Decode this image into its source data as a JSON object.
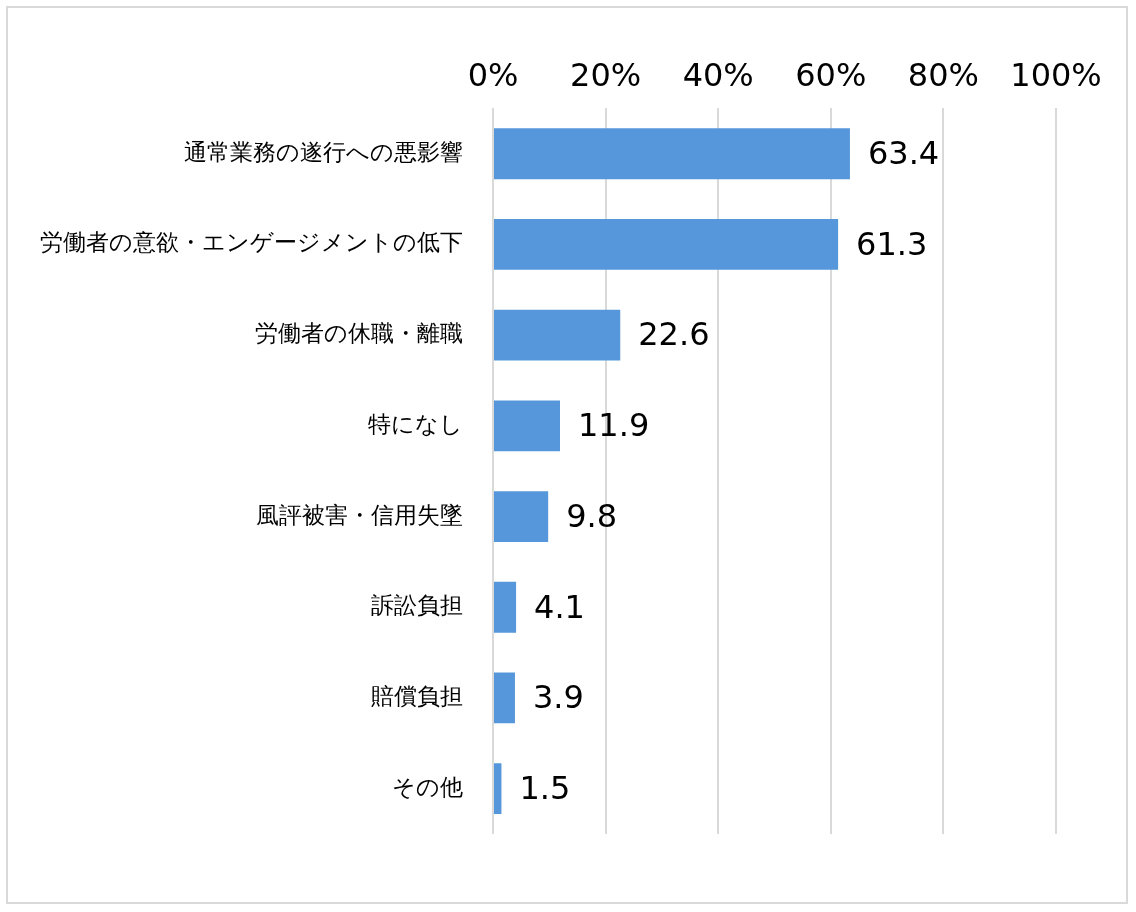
{
  "chart_data": {
    "type": "bar",
    "orientation": "horizontal",
    "categories": [
      "通常業務の遂行への悪影響",
      "労働者の意欲・エンゲージメントの低下",
      "労働者の休職・離職",
      "特になし",
      "風評被害・信用失墜",
      "訴訟負担",
      "賠償負担",
      "その他"
    ],
    "values": [
      63.4,
      61.3,
      22.6,
      11.9,
      9.8,
      4.1,
      3.9,
      1.5
    ],
    "color": "#5597da",
    "xlim": [
      0,
      100
    ],
    "xticks": [
      {
        "value": 0,
        "label": "0%"
      },
      {
        "value": 20,
        "label": "20%"
      },
      {
        "value": 40,
        "label": "40%"
      },
      {
        "value": 60,
        "label": "60%"
      },
      {
        "value": 80,
        "label": "80%"
      },
      {
        "value": 100,
        "label": "100%"
      }
    ],
    "grid": "x",
    "data_labels": true
  }
}
